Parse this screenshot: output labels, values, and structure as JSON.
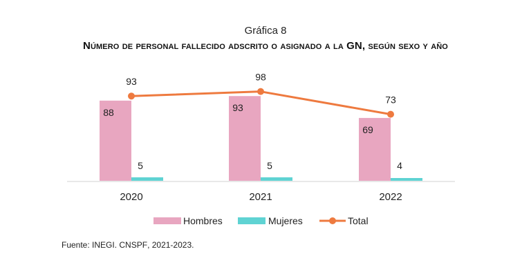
{
  "header": {
    "chart_number": "Gráfica 8",
    "title": "Número de personal fallecido adscrito o asignado a la GN, según sexo y año"
  },
  "chart_data": {
    "type": "bar",
    "categories": [
      "2020",
      "2021",
      "2022"
    ],
    "series": [
      {
        "name": "Hombres",
        "kind": "bar",
        "color": "#e8a6c0",
        "values": [
          88,
          93,
          69
        ]
      },
      {
        "name": "Mujeres",
        "kind": "bar",
        "color": "#5fd3d3",
        "values": [
          5,
          5,
          4
        ]
      },
      {
        "name": "Total",
        "kind": "line",
        "color": "#ee7a3f",
        "values": [
          93,
          98,
          73
        ]
      }
    ],
    "legend_position": "bottom",
    "grid": false
  },
  "footer": {
    "label": "Fuente:",
    "source": "INEGI. CNSPF",
    "years": ", 2021-2023."
  }
}
